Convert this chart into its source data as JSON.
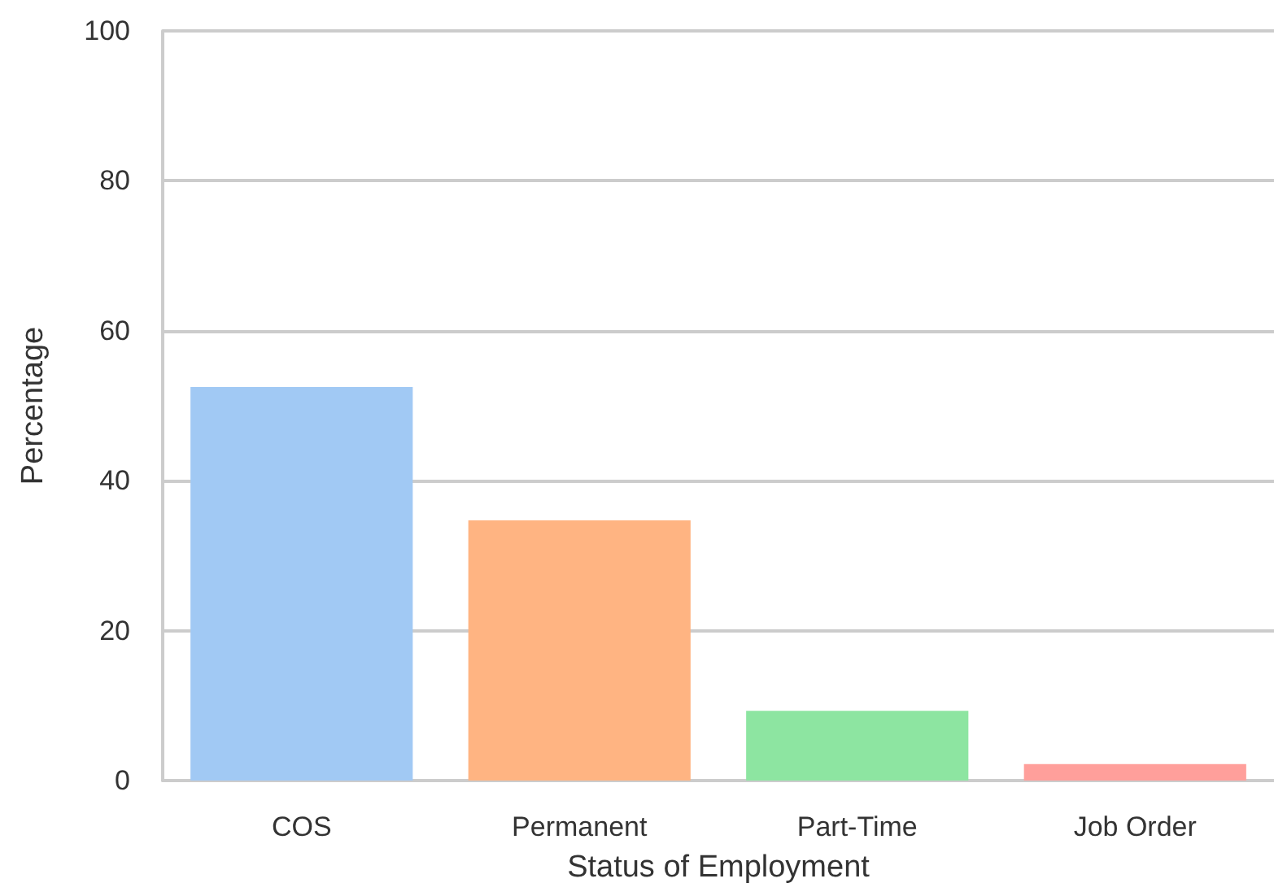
{
  "chart_data": {
    "type": "bar",
    "xlabel": "Status of Employment",
    "ylabel": "Percentage",
    "categories": [
      "COS",
      "Permanent",
      "Part-Time",
      "Job Order"
    ],
    "values": [
      52.5,
      34.7,
      9.3,
      2.2
    ],
    "colors": [
      "#a1c9f4",
      "#ffb482",
      "#8de5a1",
      "#ff9f9b"
    ],
    "ylim": [
      0,
      100
    ],
    "yticks": [
      0,
      20,
      40,
      60,
      80,
      100
    ],
    "grid": "y"
  }
}
